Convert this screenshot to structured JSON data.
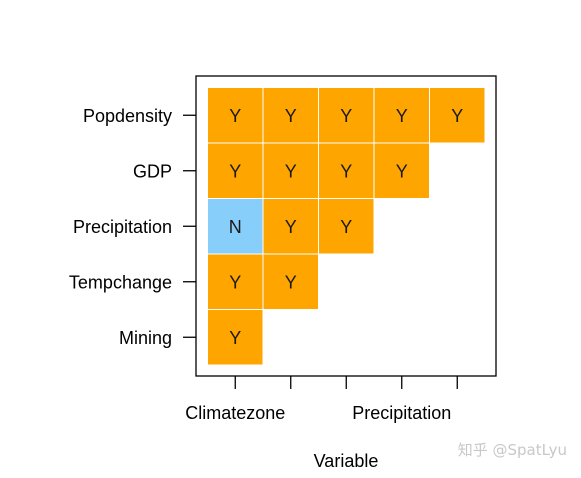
{
  "chart_data": {
    "type": "heatmap",
    "xlabel": "Variable",
    "ylabel": "",
    "x_tick_labels": [
      "Climatezone",
      "",
      "",
      "Precipitation",
      ""
    ],
    "rows": [
      "Popdensity",
      "GDP",
      "Precipitation",
      "Tempchange",
      "Mining"
    ],
    "cells": [
      [
        "Y",
        "Y",
        "Y",
        "Y",
        "Y"
      ],
      [
        "Y",
        "Y",
        "Y",
        "Y"
      ],
      [
        "N",
        "Y",
        "Y"
      ],
      [
        "Y",
        "Y"
      ],
      [
        "Y"
      ]
    ],
    "colors": {
      "Y": "#FFA500",
      "N": "#87CEFA"
    },
    "grid": false,
    "legend": "none"
  },
  "watermark": "知乎 @SpatLyu"
}
